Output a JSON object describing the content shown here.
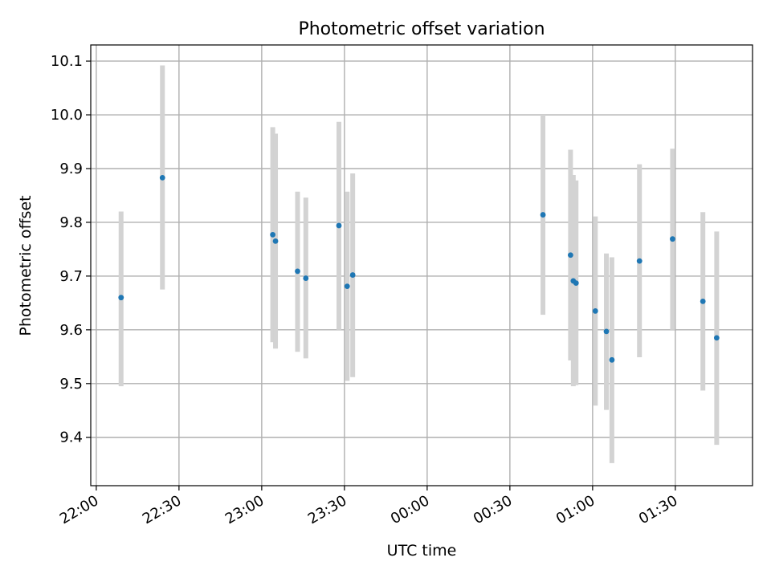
{
  "chart_data": {
    "type": "scatter",
    "title": "Photometric offset variation",
    "xlabel": "UTC time",
    "ylabel": "Photometric offset",
    "x_ticks": [
      "22:00",
      "22:30",
      "23:00",
      "23:30",
      "00:00",
      "00:30",
      "01:00",
      "01:30"
    ],
    "y_ticks": [
      "9.4",
      "9.5",
      "9.6",
      "9.7",
      "9.8",
      "9.9",
      "10.0",
      "10.1"
    ],
    "xlim": [
      "21:58",
      "01:58"
    ],
    "ylim": [
      9.31,
      10.13
    ],
    "grid": true,
    "colors": {
      "points": "#1f77b4",
      "errorbars": "#d3d3d3",
      "grid": "#b0b0b0"
    },
    "points": [
      {
        "t": "22:09",
        "y": 9.66,
        "lo": 9.495,
        "hi": 9.82
      },
      {
        "t": "22:24",
        "y": 9.883,
        "lo": 9.675,
        "hi": 10.092
      },
      {
        "t": "23:04",
        "y": 9.777,
        "lo": 9.577,
        "hi": 9.977
      },
      {
        "t": "23:05",
        "y": 9.765,
        "lo": 9.565,
        "hi": 9.965
      },
      {
        "t": "23:13",
        "y": 9.709,
        "lo": 9.559,
        "hi": 9.857
      },
      {
        "t": "23:16",
        "y": 9.696,
        "lo": 9.547,
        "hi": 9.846
      },
      {
        "t": "23:28",
        "y": 9.794,
        "lo": 9.6,
        "hi": 9.987
      },
      {
        "t": "23:31",
        "y": 9.681,
        "lo": 9.505,
        "hi": 9.857
      },
      {
        "t": "23:33",
        "y": 9.702,
        "lo": 9.512,
        "hi": 9.891
      },
      {
        "t": "00:42",
        "y": 9.814,
        "lo": 9.628,
        "hi": 10.0
      },
      {
        "t": "00:52",
        "y": 9.739,
        "lo": 9.543,
        "hi": 9.935
      },
      {
        "t": "00:53",
        "y": 9.691,
        "lo": 9.495,
        "hi": 9.888
      },
      {
        "t": "00:54",
        "y": 9.687,
        "lo": 9.497,
        "hi": 9.878
      },
      {
        "t": "01:01",
        "y": 9.635,
        "lo": 9.459,
        "hi": 9.811
      },
      {
        "t": "01:05",
        "y": 9.597,
        "lo": 9.451,
        "hi": 9.742
      },
      {
        "t": "01:07",
        "y": 9.544,
        "lo": 9.352,
        "hi": 9.735
      },
      {
        "t": "01:17",
        "y": 9.728,
        "lo": 9.549,
        "hi": 9.908
      },
      {
        "t": "01:29",
        "y": 9.769,
        "lo": 9.6,
        "hi": 9.937
      },
      {
        "t": "01:40",
        "y": 9.653,
        "lo": 9.487,
        "hi": 9.819
      },
      {
        "t": "01:45",
        "y": 9.585,
        "lo": 9.386,
        "hi": 9.783
      }
    ]
  }
}
